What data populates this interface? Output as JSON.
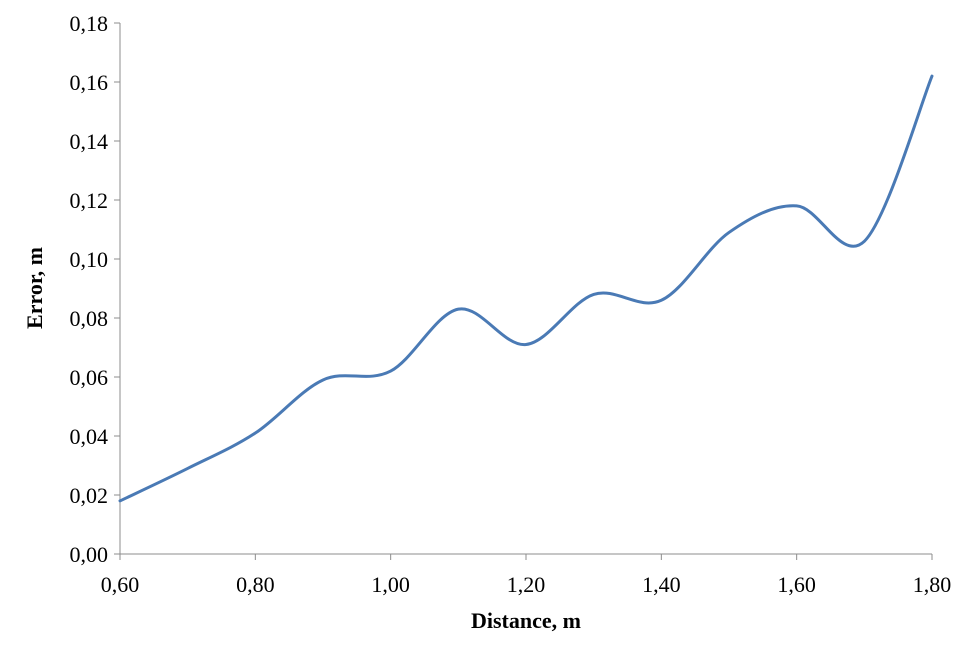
{
  "chart_data": {
    "type": "line",
    "title": "",
    "xlabel": "Distance, m",
    "ylabel": "Error, m",
    "xlim": [
      0.6,
      1.8
    ],
    "ylim": [
      0.0,
      0.18
    ],
    "x_ticks": [
      0.6,
      0.8,
      1.0,
      1.2,
      1.4,
      1.6,
      1.8
    ],
    "x_tick_labels": [
      "0,60",
      "0,80",
      "1,00",
      "1,20",
      "1,40",
      "1,60",
      "1,80"
    ],
    "y_ticks": [
      0.0,
      0.02,
      0.04,
      0.06,
      0.08,
      0.1,
      0.12,
      0.14,
      0.16,
      0.18
    ],
    "y_tick_labels": [
      "0,00",
      "0,02",
      "0,04",
      "0,06",
      "0,08",
      "0,10",
      "0,12",
      "0,14",
      "0,16",
      "0,18"
    ],
    "grid": false,
    "legend": "none",
    "smooth": true,
    "series": [
      {
        "color": "#4a7ab5",
        "x": [
          0.6,
          0.7,
          0.8,
          0.9,
          1.0,
          1.1,
          1.2,
          1.3,
          1.4,
          1.5,
          1.6,
          1.7,
          1.8
        ],
        "y": [
          0.018,
          0.029,
          0.041,
          0.059,
          0.062,
          0.083,
          0.071,
          0.088,
          0.086,
          0.109,
          0.118,
          0.106,
          0.162
        ]
      }
    ]
  }
}
